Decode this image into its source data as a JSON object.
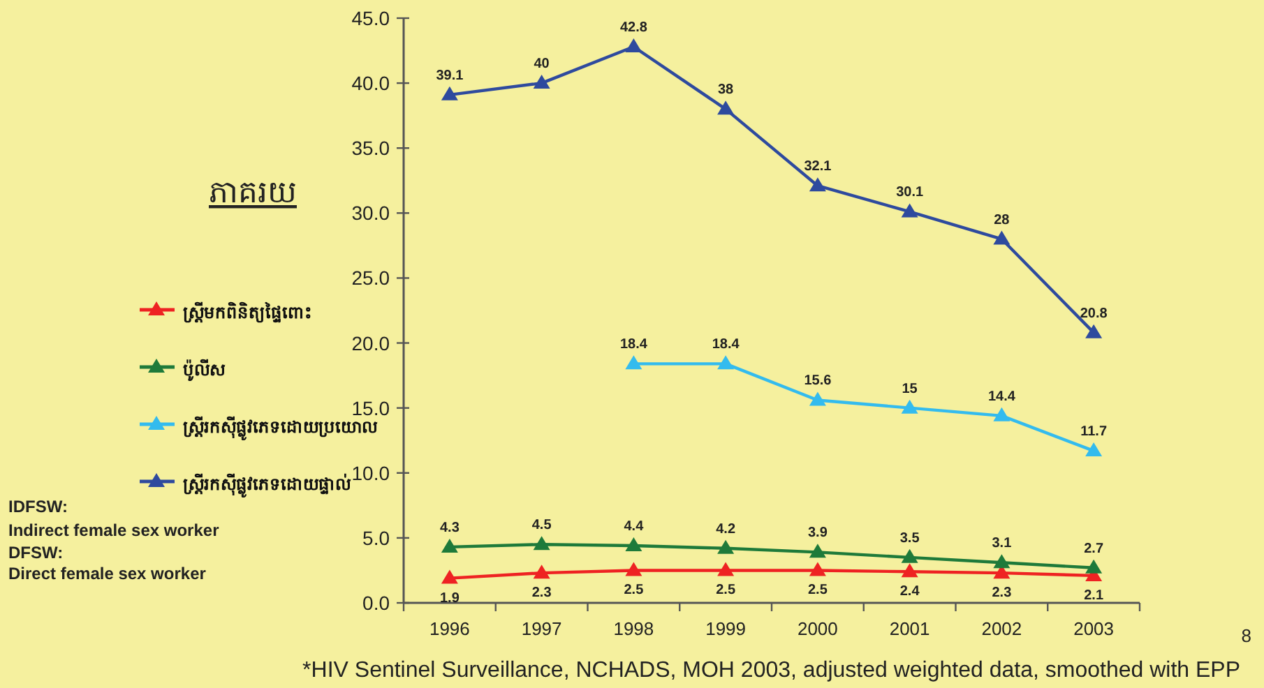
{
  "chart_data": {
    "type": "line",
    "ylabel": "ភាគរយ",
    "categories": [
      "1996",
      "1997",
      "1998",
      "1999",
      "2000",
      "2001",
      "2002",
      "2003"
    ],
    "series": [
      {
        "name": "ស្ត្រីមកពិនិត្យផ្ទៃពោះ",
        "color": "#ee2222",
        "values": [
          1.9,
          2.3,
          2.5,
          2.5,
          2.5,
          2.4,
          2.3,
          2.1
        ]
      },
      {
        "name": "ប៉ូលីស",
        "color": "#1e7a3a",
        "values": [
          4.3,
          4.5,
          4.4,
          4.2,
          3.9,
          3.5,
          3.1,
          2.7
        ]
      },
      {
        "name": "ស្ត្រីរកស៊ីផ្លូវភេទដោយប្រយោល",
        "color": "#33bbee",
        "values": [
          null,
          null,
          18.4,
          18.4,
          15.6,
          15,
          14.4,
          11.7
        ]
      },
      {
        "name": "ស្ត្រីរកស៊ីផ្លូវភេទដោយផ្ទាល់",
        "color": "#2e4a9e",
        "values": [
          39.1,
          40,
          42.8,
          38,
          32.1,
          30.1,
          28,
          20.8
        ]
      }
    ],
    "ylim": [
      0,
      45
    ],
    "yticks": [
      {
        "value": 0,
        "label": "0.0"
      },
      {
        "value": 5,
        "label": "5.0"
      },
      {
        "value": 10,
        "label": "10.0"
      },
      {
        "value": 15,
        "label": "15.0"
      },
      {
        "value": 20,
        "label": "20.0"
      },
      {
        "value": 25,
        "label": "25.0"
      },
      {
        "value": 30,
        "label": "30.0"
      },
      {
        "value": 35,
        "label": "35.0"
      },
      {
        "value": 40,
        "label": "40.0"
      },
      {
        "value": 45,
        "label": "45.0"
      }
    ],
    "marker": "triangle",
    "line_style": "solid",
    "data_labels": true,
    "grid": false,
    "legend": "left",
    "annotations": [
      "IDFSW:",
      "Indirect female sex worker",
      "DFSW:",
      "Direct female sex worker",
      "*HIV Sentinel Surveillance, NCHADS, MOH 2003, adjusted weighted data, smoothed with EPP",
      "8"
    ]
  }
}
